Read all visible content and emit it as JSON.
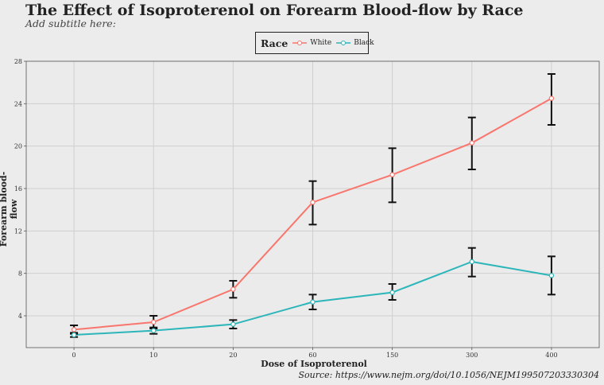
{
  "chart_data": {
    "type": "line",
    "title": "The Effect of Isoproterenol on Forearm Blood-flow by Race",
    "subtitle": "Add subtitle here:",
    "caption": "Source: https://www.nejm.org/doi/10.1056/NEJM199507203330304",
    "xlabel": "Dose of Isoproterenol",
    "ylabel": "Forearm blood-flow",
    "categories": [
      "0",
      "10",
      "20",
      "60",
      "150",
      "300",
      "400"
    ],
    "yticks": [
      4,
      8,
      12,
      16,
      20,
      24,
      28
    ],
    "ylim": [
      1.0,
      28.0
    ],
    "grid": true,
    "legend": {
      "title": "Race",
      "placement": "top-center"
    },
    "series": [
      {
        "name": "White",
        "color": "#f8766d",
        "values": [
          2.7,
          3.4,
          6.5,
          14.7,
          17.3,
          20.3,
          24.5
        ],
        "err_low": [
          2.3,
          2.8,
          5.7,
          12.6,
          14.7,
          17.8,
          22.0
        ],
        "err_high": [
          3.1,
          4.0,
          7.3,
          16.7,
          19.8,
          22.7,
          26.8
        ]
      },
      {
        "name": "Black",
        "color": "#2cb6b9",
        "values": [
          2.2,
          2.6,
          3.2,
          5.3,
          6.2,
          9.1,
          7.8
        ],
        "err_low": [
          2.0,
          2.3,
          2.8,
          4.6,
          5.5,
          7.7,
          6.0
        ],
        "err_high": [
          2.4,
          2.9,
          3.6,
          6.0,
          7.0,
          10.4,
          9.6
        ]
      }
    ]
  }
}
